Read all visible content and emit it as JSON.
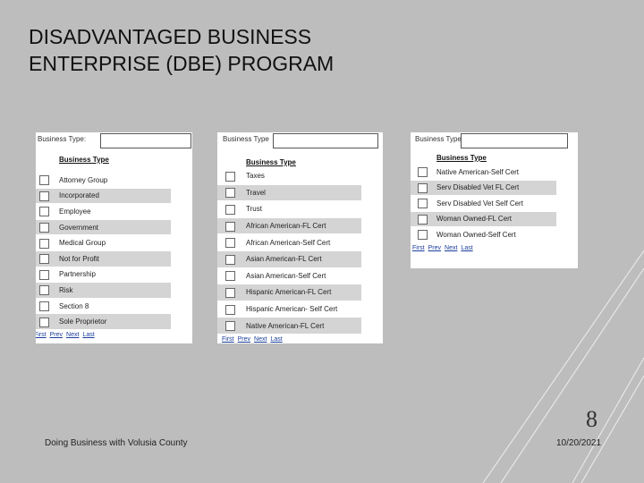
{
  "slide": {
    "title_lines": [
      "DISADVANTAGED BUSINESS",
      "ENTERPRISE (DBE) PROGRAM"
    ],
    "panels": [
      {
        "field_label": "Business Type:",
        "header": "Business Type",
        "items": [
          "Attorney Group",
          "Incorporated",
          "Employee",
          "Government",
          "Medical Group",
          "Not for Profit",
          "Partnership",
          "Risk",
          "Section 8",
          "Sole Proprietor"
        ],
        "pager": [
          "First",
          "Prev",
          "Next",
          "Last"
        ]
      },
      {
        "field_label": "Business Type",
        "header": "Business Type",
        "items": [
          "Taxes",
          "Travel",
          "Trust",
          "African American-FL Cert",
          "African American-Self Cert",
          "Asian American-FL Cert",
          "Asian American-Self Cert",
          "Hispanic American-FL Cert",
          "Hispanic American- Self Cert",
          "Native American-FL Cert"
        ],
        "pager": [
          "First",
          "Prev",
          "Next",
          "Last"
        ]
      },
      {
        "field_label": "Business Type",
        "header": "Business Type",
        "items": [
          "Native American-Self Cert",
          "Serv Disabled Vet FL Cert",
          "Serv Disabled Vet Self Cert",
          "Woman Owned-FL Cert",
          "Woman Owned-Self Cert"
        ],
        "pager": [
          "First",
          "Prev",
          "Next",
          "Last"
        ]
      }
    ],
    "footer": "Doing Business with Volusia County",
    "page_number": "8",
    "date": "10/20/2021"
  }
}
